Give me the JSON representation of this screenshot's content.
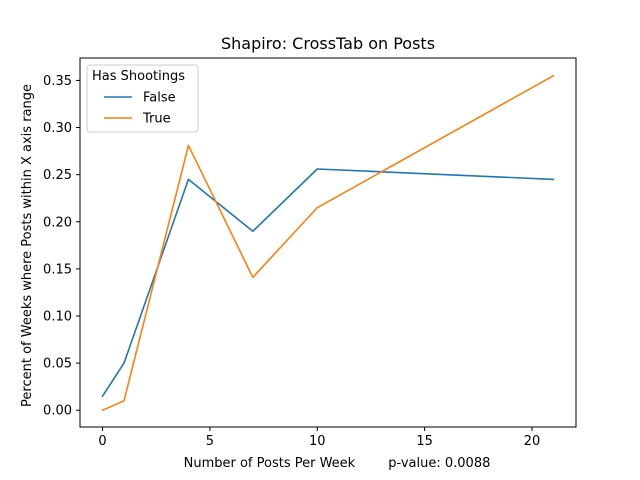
{
  "chart_data": {
    "type": "line",
    "title": "Shapiro: CrossTab on Posts",
    "xlabel": "Number of Posts Per Week        p-value: 0.0088",
    "ylabel": "Percent of Weeks where Posts within X axis range",
    "xlim": [
      -1.05,
      22.05
    ],
    "ylim": [
      -0.0178,
      0.3738
    ],
    "xticks": [
      0,
      5,
      10,
      15,
      20
    ],
    "xtick_labels": [
      "0",
      "5",
      "10",
      "15",
      "20"
    ],
    "yticks": [
      0.0,
      0.05,
      0.1,
      0.15,
      0.2,
      0.25,
      0.3,
      0.35
    ],
    "ytick_labels": [
      "0.00",
      "0.05",
      "0.10",
      "0.15",
      "0.20",
      "0.25",
      "0.30",
      "0.35"
    ],
    "grid": false,
    "legend": {
      "title": "Has Shootings",
      "placement": "top-left"
    },
    "series": [
      {
        "name": "False",
        "color": "#1f77b4",
        "x": [
          0,
          1,
          4,
          7,
          10,
          21
        ],
        "y": [
          0.015,
          0.05,
          0.245,
          0.19,
          0.256,
          0.245
        ]
      },
      {
        "name": "True",
        "color": "#ff7f0e",
        "x": [
          0,
          1,
          4,
          7,
          10,
          21
        ],
        "y": [
          0.0,
          0.01,
          0.281,
          0.141,
          0.215,
          0.355
        ]
      }
    ]
  }
}
